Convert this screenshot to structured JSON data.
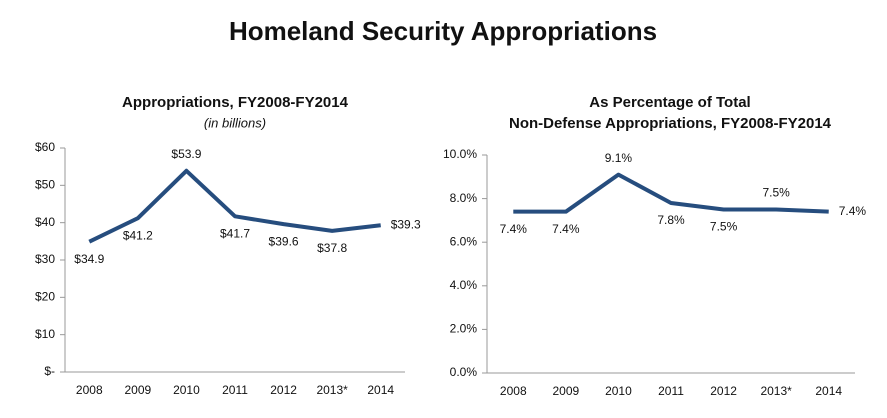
{
  "title": "Homeland Security Appropriations",
  "chart_data": [
    {
      "type": "line",
      "title": [
        "Appropriations, FY2008-FY2014"
      ],
      "subtitle": "(in billions)",
      "categories": [
        "2008",
        "2009",
        "2010",
        "2011",
        "2012",
        "2013*",
        "2014"
      ],
      "values": [
        34.9,
        41.2,
        53.9,
        41.7,
        39.6,
        37.8,
        39.3
      ],
      "value_labels": [
        "$34.9",
        "$41.2",
        "$53.9",
        "$41.7",
        "$39.6",
        "$37.8",
        "$39.3"
      ],
      "color": "#264d7e",
      "ylim": [
        0,
        60
      ],
      "yticks": [
        {
          "value": 0,
          "label": "$-"
        },
        {
          "value": 10,
          "label": "$10"
        },
        {
          "value": 20,
          "label": "$20"
        },
        {
          "value": 30,
          "label": "$30"
        },
        {
          "value": 40,
          "label": "$40"
        },
        {
          "value": 50,
          "label": "$50"
        },
        {
          "value": 60,
          "label": "$60"
        }
      ]
    },
    {
      "type": "line",
      "title": [
        "As Percentage of Total",
        "Non-Defense Appropriations, FY2008-FY2014"
      ],
      "categories": [
        "2008",
        "2009",
        "2010",
        "2011",
        "2012",
        "2013*",
        "2014"
      ],
      "values": [
        7.4,
        7.4,
        9.1,
        7.8,
        7.5,
        7.5,
        7.4
      ],
      "value_labels": [
        "7.4%",
        "7.4%",
        "9.1%",
        "7.8%",
        "7.5%",
        "7.5%",
        "7.4%"
      ],
      "color": "#264d7e",
      "ylim": [
        0,
        10
      ],
      "yticks": [
        {
          "value": 0,
          "label": "0.0%"
        },
        {
          "value": 2,
          "label": "2.0%"
        },
        {
          "value": 4,
          "label": "4.0%"
        },
        {
          "value": 6,
          "label": "6.0%"
        },
        {
          "value": 8,
          "label": "8.0%"
        },
        {
          "value": 10,
          "label": "10.0%"
        }
      ]
    }
  ]
}
